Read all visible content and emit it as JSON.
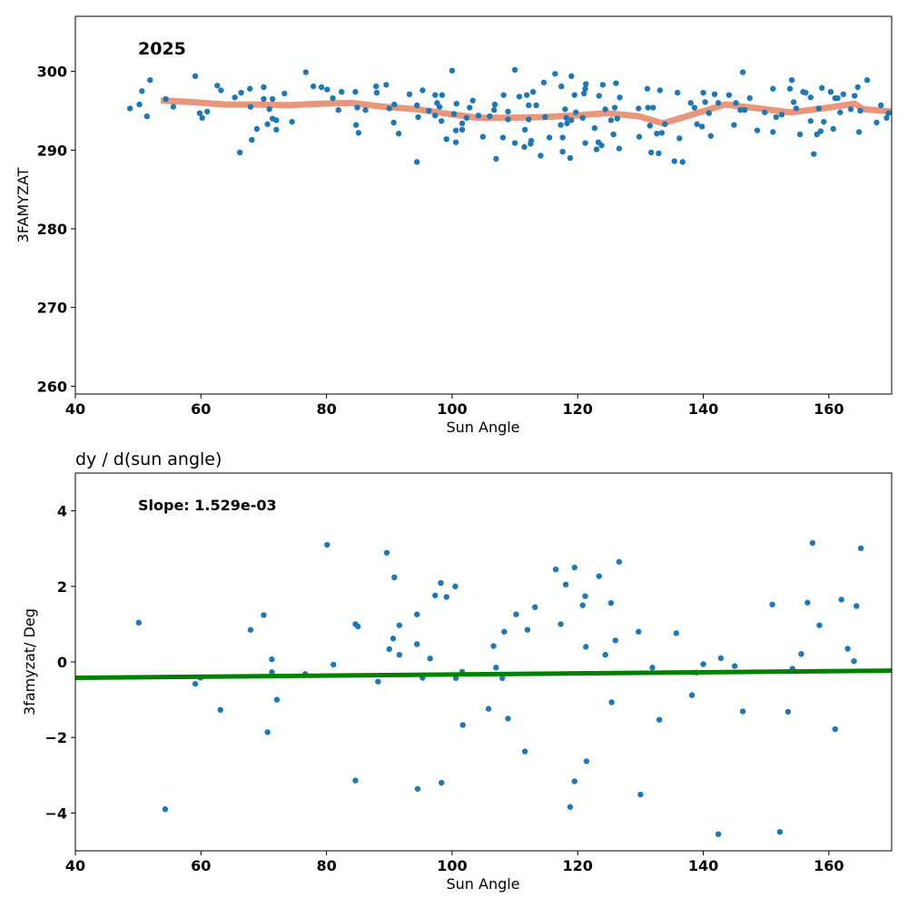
{
  "chart_data": [
    {
      "type": "scatter",
      "annotation": "2025",
      "xlabel": "Sun Angle",
      "ylabel": "3FAMYZAT",
      "xlim": [
        40,
        170
      ],
      "ylim": [
        259,
        307
      ],
      "xticks": [
        40,
        60,
        80,
        100,
        120,
        140,
        160
      ],
      "yticks": [
        260,
        270,
        280,
        290,
        300
      ],
      "scatter_color": "#1f77b4",
      "line_color": "#e9967a",
      "points": [
        [
          48.7,
          295.3
        ],
        [
          50.2,
          295.8
        ],
        [
          50.6,
          297.5
        ],
        [
          51.4,
          294.3
        ],
        [
          51.9,
          298.9
        ],
        [
          54.4,
          296.5
        ],
        [
          55.6,
          295.5
        ],
        [
          59.1,
          299.4
        ],
        [
          59.8,
          294.7
        ],
        [
          60.2,
          294.1
        ],
        [
          61.0,
          294.9
        ],
        [
          62.6,
          298.2
        ],
        [
          63.2,
          297.6
        ],
        [
          65.4,
          296.7
        ],
        [
          66.2,
          289.7
        ],
        [
          66.4,
          297.3
        ],
        [
          67.8,
          297.8
        ],
        [
          68.1,
          291.3
        ],
        [
          68.9,
          292.7
        ],
        [
          67.9,
          295.5
        ],
        [
          70.0,
          296.5
        ],
        [
          70.0,
          298.0
        ],
        [
          70.6,
          293.3
        ],
        [
          70.9,
          295.2
        ],
        [
          71.4,
          294.0
        ],
        [
          71.4,
          296.5
        ],
        [
          72.0,
          292.6
        ],
        [
          72.0,
          293.8
        ],
        [
          73.3,
          297.2
        ],
        [
          74.5,
          293.6
        ],
        [
          76.7,
          299.9
        ],
        [
          77.9,
          298.1
        ],
        [
          79.2,
          298.0
        ],
        [
          80.1,
          297.7
        ],
        [
          81.0,
          296.6
        ],
        [
          81.9,
          295.1
        ],
        [
          82.4,
          297.4
        ],
        [
          84.7,
          293.2
        ],
        [
          84.6,
          297.4
        ],
        [
          84.9,
          295.4
        ],
        [
          85.1,
          292.2
        ],
        [
          86.2,
          295.1
        ],
        [
          87.9,
          298.1
        ],
        [
          88.0,
          297.3
        ],
        [
          89.5,
          298.3
        ],
        [
          90.0,
          295.3
        ],
        [
          90.7,
          293.5
        ],
        [
          90.8,
          295.8
        ],
        [
          91.5,
          292.1
        ],
        [
          93.2,
          297.1
        ],
        [
          94.4,
          295.7
        ],
        [
          94.4,
          288.5
        ],
        [
          94.6,
          294.2
        ],
        [
          95.3,
          297.6
        ],
        [
          96.3,
          295.0
        ],
        [
          97.3,
          297.0
        ],
        [
          97.3,
          294.4
        ],
        [
          97.6,
          296.0
        ],
        [
          98.0,
          295.5
        ],
        [
          98.3,
          293.7
        ],
        [
          98.4,
          297.0
        ],
        [
          99.1,
          291.4
        ],
        [
          100.0,
          300.1
        ],
        [
          100.3,
          294.6
        ],
        [
          100.6,
          292.5
        ],
        [
          100.6,
          291.0
        ],
        [
          100.7,
          295.9
        ],
        [
          101.6,
          293.4
        ],
        [
          101.6,
          292.6
        ],
        [
          102.3,
          294.1
        ],
        [
          102.8,
          295.4
        ],
        [
          103.3,
          296.3
        ],
        [
          104.2,
          294.4
        ],
        [
          104.9,
          291.7
        ],
        [
          106.0,
          294.3
        ],
        [
          106.7,
          295.1
        ],
        [
          106.8,
          295.8
        ],
        [
          107.0,
          288.9
        ],
        [
          108.1,
          291.6
        ],
        [
          108.2,
          297.0
        ],
        [
          108.9,
          294.9
        ],
        [
          108.9,
          293.9
        ],
        [
          110.0,
          300.2
        ],
        [
          110.0,
          290.9
        ],
        [
          110.7,
          296.8
        ],
        [
          111.5,
          290.4
        ],
        [
          111.6,
          292.6
        ],
        [
          111.9,
          297.0
        ],
        [
          112.2,
          295.7
        ],
        [
          112.2,
          293.9
        ],
        [
          112.5,
          290.8
        ],
        [
          112.6,
          291.2
        ],
        [
          112.9,
          297.4
        ],
        [
          113.4,
          295.7
        ],
        [
          114.1,
          289.3
        ],
        [
          114.6,
          298.6
        ],
        [
          114.8,
          294.2
        ],
        [
          115.5,
          291.6
        ],
        [
          116.4,
          299.7
        ],
        [
          117.3,
          293.2
        ],
        [
          117.4,
          298.1
        ],
        [
          117.6,
          289.8
        ],
        [
          117.6,
          291.6
        ],
        [
          118.0,
          295.2
        ],
        [
          118.2,
          294.1
        ],
        [
          118.3,
          293.4
        ],
        [
          118.8,
          289.0
        ],
        [
          119.0,
          293.8
        ],
        [
          119.0,
          299.4
        ],
        [
          119.5,
          297.0
        ],
        [
          119.7,
          294.8
        ],
        [
          120.8,
          294.1
        ],
        [
          121.0,
          297.2
        ],
        [
          121.2,
          297.8
        ],
        [
          121.3,
          298.4
        ],
        [
          121.2,
          290.9
        ],
        [
          122.7,
          292.8
        ],
        [
          123.0,
          290.1
        ],
        [
          123.3,
          291.0
        ],
        [
          123.4,
          296.9
        ],
        [
          123.8,
          290.6
        ],
        [
          124.0,
          298.3
        ],
        [
          124.4,
          295.2
        ],
        [
          125.3,
          293.8
        ],
        [
          125.7,
          292.0
        ],
        [
          125.9,
          295.4
        ],
        [
          126.1,
          298.5
        ],
        [
          126.3,
          294.0
        ],
        [
          126.6,
          290.2
        ],
        [
          126.7,
          296.7
        ],
        [
          129.7,
          295.3
        ],
        [
          129.8,
          291.7
        ],
        [
          131.1,
          297.8
        ],
        [
          131.2,
          295.4
        ],
        [
          131.5,
          293.1
        ],
        [
          131.7,
          289.7
        ],
        [
          132.0,
          295.4
        ],
        [
          132.6,
          292.1
        ],
        [
          132.9,
          289.6
        ],
        [
          133.1,
          297.6
        ],
        [
          133.4,
          292.2
        ],
        [
          133.9,
          293.3
        ],
        [
          135.4,
          288.6
        ],
        [
          135.9,
          297.3
        ],
        [
          136.2,
          291.5
        ],
        [
          136.7,
          288.5
        ],
        [
          138.0,
          296.0
        ],
        [
          138.6,
          295.4
        ],
        [
          139.0,
          293.3
        ],
        [
          139.8,
          293.0
        ],
        [
          140.0,
          297.3
        ],
        [
          140.3,
          296.1
        ],
        [
          140.9,
          294.7
        ],
        [
          141.2,
          291.8
        ],
        [
          141.8,
          297.1
        ],
        [
          142.4,
          296.0
        ],
        [
          144.1,
          297.0
        ],
        [
          144.9,
          293.2
        ],
        [
          145.2,
          296.0
        ],
        [
          145.9,
          295.1
        ],
        [
          146.3,
          299.9
        ],
        [
          146.6,
          295.1
        ],
        [
          147.4,
          296.6
        ],
        [
          148.6,
          292.5
        ],
        [
          149.8,
          294.8
        ],
        [
          151.1,
          292.3
        ],
        [
          151.1,
          297.8
        ],
        [
          151.6,
          294.2
        ],
        [
          152.5,
          294.5
        ],
        [
          153.8,
          297.8
        ],
        [
          154.1,
          298.9
        ],
        [
          154.4,
          296.1
        ],
        [
          154.8,
          295.3
        ],
        [
          155.4,
          292.0
        ],
        [
          155.9,
          297.4
        ],
        [
          156.3,
          297.3
        ],
        [
          157.1,
          296.7
        ],
        [
          157.1,
          293.7
        ],
        [
          157.6,
          289.5
        ],
        [
          158.1,
          292.0
        ],
        [
          158.4,
          295.3
        ],
        [
          158.7,
          292.4
        ],
        [
          158.9,
          297.9
        ],
        [
          159.2,
          293.6
        ],
        [
          160.3,
          297.4
        ],
        [
          160.7,
          292.7
        ],
        [
          161.0,
          296.6
        ],
        [
          161.4,
          296.6
        ],
        [
          161.8,
          294.8
        ],
        [
          162.3,
          297.1
        ],
        [
          163.5,
          295.2
        ],
        [
          164.1,
          296.9
        ],
        [
          164.6,
          298.0
        ],
        [
          164.8,
          292.3
        ],
        [
          165.0,
          295.0
        ],
        [
          166.1,
          298.9
        ],
        [
          167.6,
          293.5
        ],
        [
          168.3,
          295.7
        ],
        [
          169.2,
          294.1
        ],
        [
          169.5,
          294.7
        ]
      ],
      "trend_line": [
        [
          53.6,
          296.3
        ],
        [
          58.7,
          296.1
        ],
        [
          63.8,
          295.8
        ],
        [
          68.7,
          295.8
        ],
        [
          73.9,
          295.7
        ],
        [
          79.0,
          295.9
        ],
        [
          84.0,
          296.0
        ],
        [
          89.2,
          295.5
        ],
        [
          94.3,
          295.2
        ],
        [
          99.4,
          294.6
        ],
        [
          104.2,
          294.1
        ],
        [
          109.3,
          294.1
        ],
        [
          114.5,
          294.2
        ],
        [
          119.6,
          294.4
        ],
        [
          124.6,
          294.7
        ],
        [
          129.7,
          294.3
        ],
        [
          133.6,
          293.4
        ],
        [
          138.6,
          294.6
        ],
        [
          143.5,
          295.8
        ],
        [
          148.8,
          295.3
        ],
        [
          153.9,
          294.8
        ],
        [
          159.0,
          295.3
        ],
        [
          164.1,
          295.9
        ],
        [
          165.5,
          295.2
        ],
        [
          170.0,
          294.9
        ]
      ]
    },
    {
      "type": "scatter",
      "title": "dy / d(sun angle)",
      "annotation": "Slope: 1.529e-03",
      "xlabel": "Sun Angle",
      "ylabel": "3famyzat/ Deg",
      "xlim": [
        40,
        170
      ],
      "ylim": [
        -5,
        5
      ],
      "xticks": [
        40,
        60,
        80,
        100,
        120,
        140,
        160
      ],
      "yticks": [
        -4,
        -2,
        0,
        2,
        4
      ],
      "scatter_color": "#1f77b4",
      "line_color": "#008000",
      "points": [
        [
          50.1,
          1.04
        ],
        [
          54.3,
          -3.9
        ],
        [
          59.1,
          -0.58
        ],
        [
          59.9,
          -0.42
        ],
        [
          63.1,
          -1.27
        ],
        [
          67.9,
          0.85
        ],
        [
          70.0,
          1.24
        ],
        [
          70.6,
          -1.86
        ],
        [
          71.3,
          0.07
        ],
        [
          71.3,
          -0.27
        ],
        [
          72.1,
          -1.0
        ],
        [
          76.6,
          -0.32
        ],
        [
          80.1,
          3.1
        ],
        [
          81.1,
          -0.07
        ],
        [
          84.6,
          -3.14
        ],
        [
          84.6,
          1.0
        ],
        [
          85.0,
          0.94
        ],
        [
          88.2,
          -0.52
        ],
        [
          89.6,
          2.89
        ],
        [
          90.0,
          0.34
        ],
        [
          90.6,
          0.62
        ],
        [
          90.8,
          2.24
        ],
        [
          91.6,
          0.97
        ],
        [
          91.6,
          0.19
        ],
        [
          94.4,
          1.26
        ],
        [
          94.4,
          0.47
        ],
        [
          94.5,
          -3.36
        ],
        [
          95.3,
          -0.42
        ],
        [
          96.5,
          0.09
        ],
        [
          97.3,
          1.76
        ],
        [
          98.2,
          2.09
        ],
        [
          98.3,
          -3.2
        ],
        [
          99.1,
          1.72
        ],
        [
          100.5,
          2.0
        ],
        [
          100.6,
          -0.43
        ],
        [
          101.6,
          -0.26
        ],
        [
          101.7,
          -1.67
        ],
        [
          105.8,
          -1.24
        ],
        [
          106.6,
          0.42
        ],
        [
          107.0,
          -0.15
        ],
        [
          108.0,
          -0.43
        ],
        [
          108.3,
          0.8
        ],
        [
          108.9,
          -1.5
        ],
        [
          110.2,
          1.26
        ],
        [
          111.6,
          -2.37
        ],
        [
          112.0,
          0.85
        ],
        [
          113.2,
          1.45
        ],
        [
          116.5,
          2.45
        ],
        [
          117.3,
          1.0
        ],
        [
          118.1,
          2.05
        ],
        [
          118.8,
          -3.84
        ],
        [
          119.5,
          2.5
        ],
        [
          119.5,
          -3.16
        ],
        [
          120.8,
          1.5
        ],
        [
          121.2,
          1.74
        ],
        [
          121.3,
          0.4
        ],
        [
          121.4,
          -2.63
        ],
        [
          123.4,
          2.27
        ],
        [
          124.4,
          0.19
        ],
        [
          125.3,
          1.56
        ],
        [
          125.4,
          -1.07
        ],
        [
          126.0,
          0.57
        ],
        [
          126.6,
          2.65
        ],
        [
          129.7,
          0.8
        ],
        [
          130.0,
          -3.51
        ],
        [
          131.9,
          -0.15
        ],
        [
          133.0,
          -1.53
        ],
        [
          135.7,
          0.76
        ],
        [
          138.2,
          -0.88
        ],
        [
          138.9,
          -0.28
        ],
        [
          140.0,
          -0.06
        ],
        [
          142.4,
          -4.56
        ],
        [
          142.8,
          0.1
        ],
        [
          145.0,
          -0.11
        ],
        [
          146.3,
          -1.31
        ],
        [
          151.0,
          1.52
        ],
        [
          152.2,
          -4.5
        ],
        [
          153.5,
          -1.32
        ],
        [
          154.2,
          -0.18
        ],
        [
          155.6,
          0.21
        ],
        [
          156.6,
          1.57
        ],
        [
          157.4,
          3.15
        ],
        [
          158.5,
          0.97
        ],
        [
          161.0,
          -1.78
        ],
        [
          162.0,
          1.65
        ],
        [
          163.0,
          0.35
        ],
        [
          164.0,
          0.02
        ],
        [
          164.4,
          1.48
        ],
        [
          165.1,
          3.01
        ]
      ],
      "trend_line": [
        [
          40,
          -0.42
        ],
        [
          170,
          -0.23
        ]
      ]
    }
  ]
}
